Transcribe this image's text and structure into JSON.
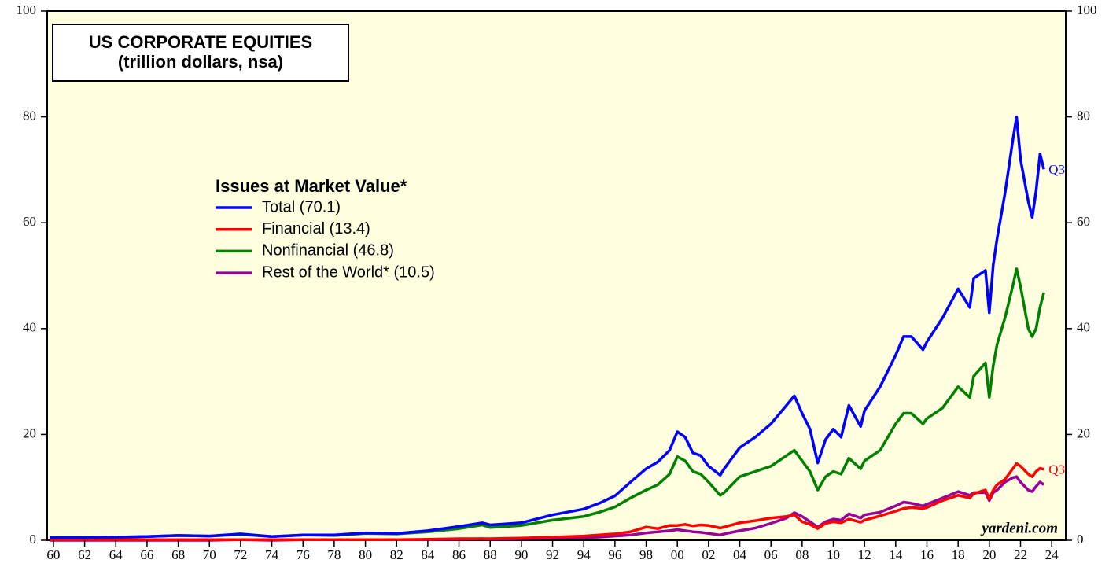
{
  "chart_data": {
    "type": "line",
    "title": "US CORPORATE EQUITIES",
    "subtitle": "(trillion dollars, nsa)",
    "legend_title": "Issues at Market Value*",
    "annotations": [
      "Q3",
      "Q3",
      "yardeni.com"
    ],
    "x": [
      1959.75,
      1962,
      1964,
      1966,
      1968,
      1970,
      1972,
      1974,
      1976,
      1978,
      1980,
      1982,
      1984,
      1986,
      1987.5,
      1988,
      1990,
      1992,
      1994,
      1995,
      1996,
      1997,
      1998,
      1998.75,
      1999.5,
      2000,
      2000.5,
      2001,
      2001.5,
      2002,
      2002.75,
      2003,
      2004,
      2005,
      2006,
      2007,
      2007.5,
      2008,
      2008.5,
      2009,
      2009.5,
      2010,
      2010.5,
      2011,
      2011.75,
      2012,
      2013,
      2014,
      2014.5,
      2015,
      2015.75,
      2016,
      2017,
      2018,
      2018.75,
      2019,
      2019.75,
      2020,
      2020.25,
      2020.5,
      2021,
      2021.5,
      2021.75,
      2022,
      2022.5,
      2022.75,
      2023,
      2023.25,
      2023.5
    ],
    "series": [
      {
        "name": "Total (70.1)",
        "color": "#0000ff",
        "values": [
          0.5,
          0.5,
          0.6,
          0.7,
          0.9,
          0.8,
          1.2,
          0.7,
          1.0,
          1.0,
          1.4,
          1.3,
          1.8,
          2.6,
          3.3,
          2.9,
          3.3,
          4.8,
          5.9,
          7.0,
          8.4,
          11,
          13.5,
          14.8,
          17,
          20.5,
          19.5,
          16.5,
          16,
          14,
          12.3,
          13.5,
          17.5,
          19.5,
          22,
          25.5,
          27.3,
          24,
          21,
          14.6,
          19,
          21,
          19.5,
          25.5,
          21.5,
          24.5,
          29,
          35,
          38.5,
          38.5,
          36,
          37.5,
          42,
          47.5,
          44,
          49.5,
          51,
          43,
          52,
          57,
          65.5,
          75.5,
          80,
          72,
          64,
          61,
          66,
          73,
          70.1
        ]
      },
      {
        "name": "Financial (13.4)",
        "color": "#ff0000",
        "values": [
          0.1,
          0.1,
          0.1,
          0.1,
          0.1,
          0.1,
          0.1,
          0.1,
          0.1,
          0.1,
          0.1,
          0.1,
          0.2,
          0.3,
          0.3,
          0.3,
          0.4,
          0.6,
          0.8,
          1.0,
          1.2,
          1.6,
          2.5,
          2.2,
          2.8,
          2.8,
          3.0,
          2.7,
          2.9,
          2.8,
          2.3,
          2.5,
          3.3,
          3.7,
          4.2,
          4.5,
          4.8,
          3.5,
          3.0,
          2.2,
          3.2,
          3.5,
          3.3,
          4.0,
          3.4,
          3.8,
          4.6,
          5.5,
          6.0,
          6.2,
          6.0,
          6.2,
          7.5,
          8.5,
          8.0,
          8.8,
          9.5,
          7.8,
          9.5,
          10.5,
          11.5,
          13.5,
          14.5,
          14,
          12.5,
          12,
          13,
          13.6,
          13.4
        ]
      },
      {
        "name": "Nonfinancial (46.8)",
        "color": "#008000",
        "values": [
          0.5,
          0.5,
          0.6,
          0.7,
          0.9,
          0.8,
          1.1,
          0.7,
          1.0,
          0.9,
          1.3,
          1.2,
          1.6,
          2.2,
          2.9,
          2.4,
          2.8,
          3.8,
          4.5,
          5.3,
          6.3,
          8,
          9.5,
          10.5,
          12.5,
          15.8,
          15,
          13,
          12.5,
          11,
          8.5,
          9,
          12,
          13,
          14,
          16,
          17,
          15,
          13,
          9.5,
          12,
          13,
          12.5,
          15.5,
          13.5,
          15,
          17,
          22,
          24,
          24,
          22,
          23,
          25,
          29,
          27,
          31,
          33.5,
          27,
          33,
          37,
          42,
          48,
          51.3,
          48,
          40,
          38.5,
          40,
          44,
          46.8
        ]
      },
      {
        "name": "Rest of the World* (10.5)",
        "color": "#990099",
        "values": [
          0,
          0,
          0,
          0,
          0,
          0,
          0.1,
          0,
          0.1,
          0.1,
          0.1,
          0.1,
          0.1,
          0.2,
          0.3,
          0.2,
          0.3,
          0.4,
          0.5,
          0.6,
          0.8,
          1.0,
          1.4,
          1.6,
          1.8,
          2.0,
          1.8,
          1.6,
          1.5,
          1.3,
          1.0,
          1.2,
          1.8,
          2.3,
          3.2,
          4.2,
          5.2,
          4.5,
          3.5,
          2.5,
          3.5,
          4.0,
          3.8,
          5.0,
          4.2,
          4.8,
          5.3,
          6.5,
          7.2,
          7.0,
          6.5,
          6.8,
          8.0,
          9.2,
          8.5,
          9.0,
          9.0,
          7.5,
          9.0,
          9.5,
          11,
          11.8,
          12,
          11,
          9.5,
          9.2,
          10.2,
          11,
          10.5
        ]
      }
    ],
    "xlim": [
      1959.6,
      2024.9
    ],
    "xticks": [
      {
        "value": 1960,
        "label": "60"
      },
      {
        "value": 1962,
        "label": "62"
      },
      {
        "value": 1964,
        "label": "64"
      },
      {
        "value": 1966,
        "label": "66"
      },
      {
        "value": 1968,
        "label": "68"
      },
      {
        "value": 1970,
        "label": "70"
      },
      {
        "value": 1972,
        "label": "72"
      },
      {
        "value": 1974,
        "label": "74"
      },
      {
        "value": 1976,
        "label": "76"
      },
      {
        "value": 1978,
        "label": "78"
      },
      {
        "value": 1980,
        "label": "80"
      },
      {
        "value": 1982,
        "label": "82"
      },
      {
        "value": 1984,
        "label": "84"
      },
      {
        "value": 1986,
        "label": "86"
      },
      {
        "value": 1988,
        "label": "88"
      },
      {
        "value": 1990,
        "label": "90"
      },
      {
        "value": 1992,
        "label": "92"
      },
      {
        "value": 1994,
        "label": "94"
      },
      {
        "value": 1996,
        "label": "96"
      },
      {
        "value": 1998,
        "label": "98"
      },
      {
        "value": 2000,
        "label": "00"
      },
      {
        "value": 2002,
        "label": "02"
      },
      {
        "value": 2004,
        "label": "04"
      },
      {
        "value": 2006,
        "label": "06"
      },
      {
        "value": 2008,
        "label": "08"
      },
      {
        "value": 2010,
        "label": "10"
      },
      {
        "value": 2012,
        "label": "12"
      },
      {
        "value": 2014,
        "label": "14"
      },
      {
        "value": 2016,
        "label": "16"
      },
      {
        "value": 2018,
        "label": "18"
      },
      {
        "value": 2020,
        "label": "20"
      },
      {
        "value": 2022,
        "label": "22"
      },
      {
        "value": 2024,
        "label": "24"
      }
    ],
    "ylim": [
      0,
      100
    ],
    "yticks": [
      0,
      20,
      40,
      60,
      80,
      100
    ],
    "y2lim": [
      0,
      100
    ],
    "y2ticks": [
      0,
      20,
      40,
      60,
      80,
      100
    ],
    "legend": "upper left"
  }
}
